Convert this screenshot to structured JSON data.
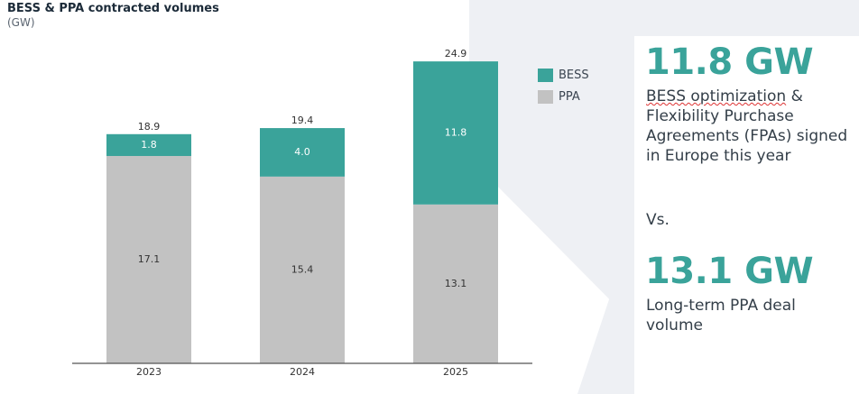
{
  "chart_data": {
    "type": "bar",
    "stacked": true,
    "title": "BESS & PPA contracted volumes",
    "unit": "(GW)",
    "categories": [
      "2023",
      "2024",
      "2025"
    ],
    "series": [
      {
        "name": "PPA",
        "values": [
          17.1,
          15.4,
          13.1
        ],
        "color": "#c2c2c2"
      },
      {
        "name": "BESS",
        "values": [
          1.8,
          4.0,
          11.8
        ],
        "color": "#3aa39a"
      }
    ],
    "value_labels": {
      "PPA": [
        "17.1",
        "15.4",
        "13.1"
      ],
      "BESS": [
        "1.8",
        "4.0",
        "11.8"
      ]
    },
    "totals": [
      "18.9",
      "19.4",
      "24.9"
    ],
    "legend": [
      "BESS",
      "PPA"
    ],
    "legend_position": "top-right",
    "grid": false
  },
  "panel": {
    "stat1_value": "11.8 GW",
    "stat1_text_pre": "BESS optimization",
    "stat1_text_mid": " & Flexibility Purchase Agreements (FPAs) signed in Europe this year",
    "vs": "Vs.",
    "stat2_value": "13.1 GW",
    "stat2_text": "Long-term PPA deal volume"
  },
  "colors": {
    "accent": "#3aa39a",
    "ppa": "#c2c2c2",
    "axis": "#555555"
  }
}
